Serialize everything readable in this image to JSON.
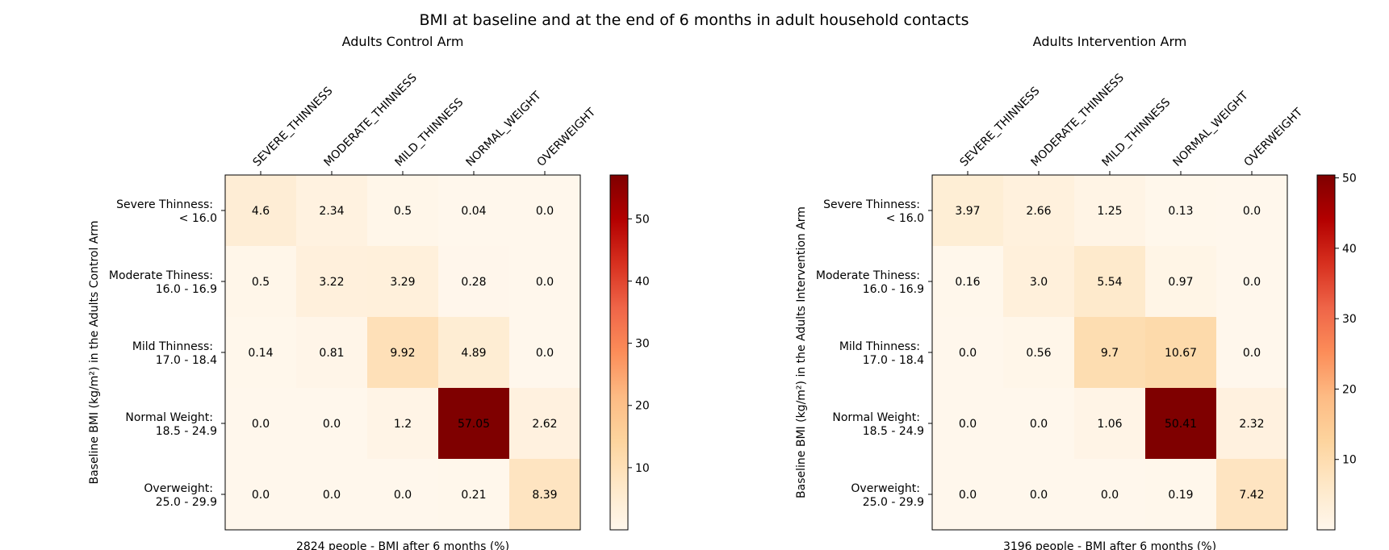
{
  "figure_title": "BMI at baseline and at the end of 6 months in adult household contacts",
  "chart_data": [
    {
      "type": "heatmap",
      "title": "Adults Control Arm",
      "xlabel": "2824 people - BMI after 6 months (%)",
      "ylabel": "Baseline BMI (kg/m²) in the Adults Control Arm",
      "x_categories": [
        "SEVERE_THINNESS",
        "MODERATE_THINNESS",
        "MILD_THINNESS",
        "NORMAL_WEIGHT",
        "OVERWEIGHT"
      ],
      "y_categories": [
        [
          "Severe Thinness:",
          "< 16.0"
        ],
        [
          "Moderate Thiness:",
          "16.0 - 16.9"
        ],
        [
          "Mild Thinness:",
          "17.0 - 18.4"
        ],
        [
          "Normal Weight:",
          "18.5 - 24.9"
        ],
        [
          "Overweight:",
          "25.0 - 29.9"
        ]
      ],
      "values": [
        [
          4.6,
          2.34,
          0.5,
          0.04,
          0.0
        ],
        [
          0.5,
          3.22,
          3.29,
          0.28,
          0.0
        ],
        [
          0.14,
          0.81,
          9.92,
          4.89,
          0.0
        ],
        [
          0.0,
          0.0,
          1.2,
          57.05,
          2.62
        ],
        [
          0.0,
          0.0,
          0.0,
          0.21,
          8.39
        ]
      ],
      "value_labels": [
        [
          "4.6",
          "2.34",
          "0.5",
          "0.04",
          "0.0"
        ],
        [
          "0.5",
          "3.22",
          "3.29",
          "0.28",
          "0.0"
        ],
        [
          "0.14",
          "0.81",
          "9.92",
          "4.89",
          "0.0"
        ],
        [
          "0.0",
          "0.0",
          "1.2",
          "57.05",
          "2.62"
        ],
        [
          "0.0",
          "0.0",
          "0.0",
          "0.21",
          "8.39"
        ]
      ],
      "colorbar": {
        "vmin": 0,
        "vmax": 57.05,
        "ticks": [
          10,
          20,
          30,
          40,
          50
        ],
        "colormap": "OrRd"
      }
    },
    {
      "type": "heatmap",
      "title": "Adults Intervention Arm",
      "xlabel": "3196 people - BMI after 6 months (%)",
      "ylabel": "Baseline BMI (kg/m²) in the Adults Intervention Arm",
      "x_categories": [
        "SEVERE_THINNESS",
        "MODERATE_THINNESS",
        "MILD_THINNESS",
        "NORMAL_WEIGHT",
        "OVERWEIGHT"
      ],
      "y_categories": [
        [
          "Severe Thinness:",
          "< 16.0"
        ],
        [
          "Moderate Thiness:",
          "16.0 - 16.9"
        ],
        [
          "Mild Thinness:",
          "17.0 - 18.4"
        ],
        [
          "Normal Weight:",
          "18.5 - 24.9"
        ],
        [
          "Overweight:",
          "25.0 - 29.9"
        ]
      ],
      "values": [
        [
          3.97,
          2.66,
          1.25,
          0.13,
          0.0
        ],
        [
          0.16,
          3.0,
          5.54,
          0.97,
          0.0
        ],
        [
          0.0,
          0.56,
          9.7,
          10.67,
          0.0
        ],
        [
          0.0,
          0.0,
          1.06,
          50.41,
          2.32
        ],
        [
          0.0,
          0.0,
          0.0,
          0.19,
          7.42
        ]
      ],
      "value_labels": [
        [
          "3.97",
          "2.66",
          "1.25",
          "0.13",
          "0.0"
        ],
        [
          "0.16",
          "3.0",
          "5.54",
          "0.97",
          "0.0"
        ],
        [
          "0.0",
          "0.56",
          "9.7",
          "10.67",
          "0.0"
        ],
        [
          "0.0",
          "0.0",
          "1.06",
          "50.41",
          "2.32"
        ],
        [
          "0.0",
          "0.0",
          "0.0",
          "0.19",
          "7.42"
        ]
      ],
      "colorbar": {
        "vmin": 0,
        "vmax": 50.41,
        "ticks": [
          10,
          20,
          30,
          40,
          50
        ],
        "colormap": "OrRd"
      }
    }
  ]
}
